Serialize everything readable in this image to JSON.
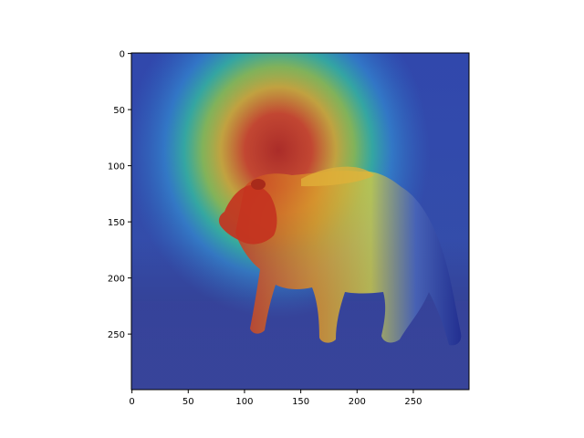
{
  "figure": {
    "background": "#ffffff",
    "image": {
      "subject": "brown bear walking in grass",
      "overlay": "heatmap",
      "colormap": "jet",
      "colors": {
        "sky": "#3f5fa3",
        "grass": "#45537f",
        "bear_fur": "#7a5a3a",
        "overlay_low": "#1e2bb8",
        "overlay_mid": "#2fd47a",
        "overlay_high": "#d9231e"
      }
    },
    "x_axis": {
      "range": [
        0,
        299
      ],
      "ticks": [
        {
          "value": 0,
          "label": "0"
        },
        {
          "value": 50,
          "label": "50"
        },
        {
          "value": 100,
          "label": "100"
        },
        {
          "value": 150,
          "label": "150"
        },
        {
          "value": 200,
          "label": "200"
        },
        {
          "value": 250,
          "label": "250"
        }
      ]
    },
    "y_axis": {
      "range": [
        0,
        299
      ],
      "inverted": true,
      "ticks": [
        {
          "value": 0,
          "label": "0"
        },
        {
          "value": 50,
          "label": "50"
        },
        {
          "value": 100,
          "label": "100"
        },
        {
          "value": 150,
          "label": "150"
        },
        {
          "value": 200,
          "label": "200"
        },
        {
          "value": 250,
          "label": "250"
        }
      ]
    }
  }
}
